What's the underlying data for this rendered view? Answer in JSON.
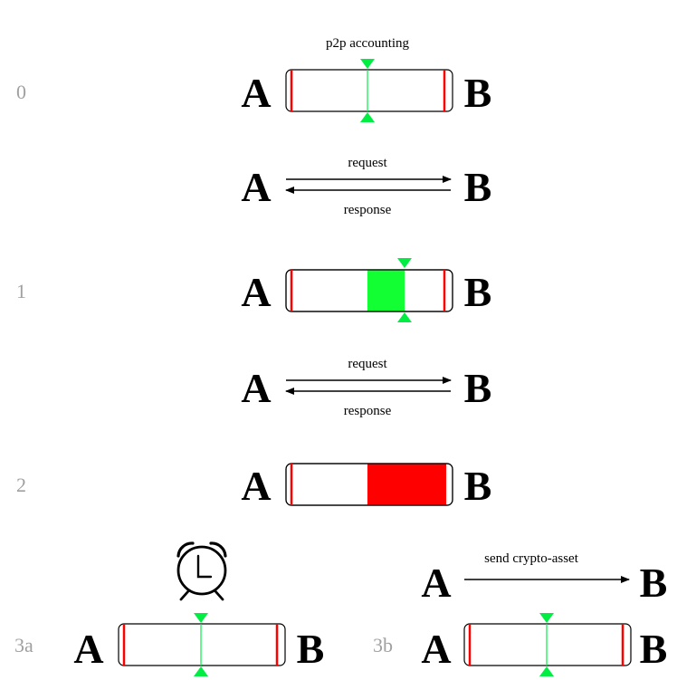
{
  "colors": {
    "bar_outline": "#000000",
    "limit_line": "#ff0000",
    "center_marker": "#00ee44",
    "positive_fill": "#11ff33",
    "debt_fill": "#ff0000",
    "step_label": "#a0a0a0"
  },
  "title": "p2p accounting",
  "steps": [
    {
      "label": "0",
      "left_party": "A",
      "right_party": "B",
      "balance_state": "balanced"
    },
    {
      "label": "1",
      "left_party": "A",
      "right_party": "B",
      "balance_state": "positive"
    },
    {
      "label": "2",
      "left_party": "A",
      "right_party": "B",
      "balance_state": "at-limit"
    },
    {
      "label": "3a",
      "left_party": "A",
      "right_party": "B",
      "balance_state": "balanced",
      "icon": "alarm-clock-icon"
    },
    {
      "label": "3b",
      "left_party": "A",
      "right_party": "B",
      "balance_state": "balanced"
    }
  ],
  "exchanges": [
    {
      "left_party": "A",
      "right_party": "B",
      "request_label": "request",
      "response_label": "response"
    },
    {
      "left_party": "A",
      "right_party": "B",
      "request_label": "request",
      "response_label": "response"
    }
  ],
  "settlement": {
    "left_party": "A",
    "right_party": "B",
    "label": "send crypto-asset"
  }
}
